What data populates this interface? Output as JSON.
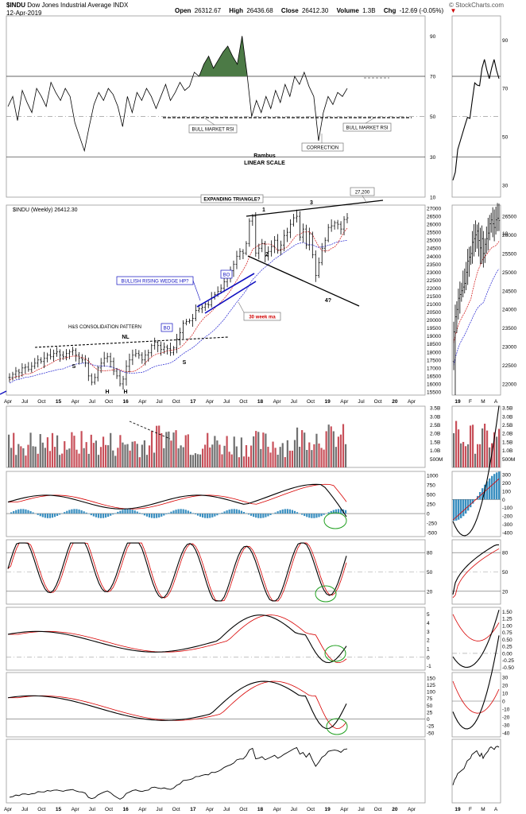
{
  "header": {
    "symbol": "$INDU",
    "name": "Dow Jones Industrial Average",
    "exchange": "INDX",
    "date": "12-Apr-2019",
    "quote": {
      "open_label": "Open",
      "open": "26312.67",
      "high_label": "High",
      "high": "26436.68",
      "close_label": "Close",
      "close": "26412.30",
      "volume_label": "Volume",
      "volume": "1.3B",
      "chg_label": "Chg",
      "chg": "-12.69 (-0.05%)",
      "chg_arrow": "▼"
    },
    "source": "© StockCharts.com"
  },
  "colors": {
    "up_bar": "#000000",
    "down_bar": "#000000",
    "vol_red": "#c8505a",
    "vol_gray": "#707070",
    "macd_hist": "#3a8fc0",
    "signal_red": "#d80000",
    "ma_red": "#d01010",
    "ma_blue": "#2020d0",
    "rsi_fill": "#4c7a46",
    "bo_blue": "#1010c0",
    "circle_green": "#20a020"
  },
  "chart_data": [
    {
      "type": "line",
      "panel": "rsi",
      "yticks": [
        "90",
        "70",
        "50",
        "30",
        "10"
      ],
      "ylim": [
        10,
        100
      ],
      "hlines": [
        70,
        30
      ],
      "dashed_levels": [
        50
      ],
      "annotations": [
        "BULL MARKET RSI",
        "BULL MARKET RSI",
        "CORRECTION",
        "Rambus",
        "LINEAR SCALE"
      ],
      "values": [
        55,
        60,
        48,
        63,
        57,
        52,
        64,
        60,
        55,
        67,
        62,
        58,
        64,
        60,
        47,
        40,
        33,
        45,
        56,
        62,
        58,
        64,
        61,
        55,
        45,
        60,
        52,
        62,
        58,
        64,
        60,
        54,
        60,
        66,
        58,
        62,
        67,
        63,
        65,
        72,
        70,
        76,
        80,
        74,
        78,
        82,
        85,
        80,
        76,
        90,
        72,
        50,
        58,
        52,
        60,
        54,
        63,
        57,
        66,
        60,
        70,
        66,
        72,
        65,
        60,
        38,
        52,
        60,
        56,
        62,
        60,
        64
      ]
    },
    {
      "type": "bar",
      "panel": "price",
      "title": "$INDU (Weekly) 26412.30",
      "yticks": [
        "27000",
        "26500",
        "26000",
        "25500",
        "25000",
        "24500",
        "24000",
        "23500",
        "23000",
        "22500",
        "22000",
        "21500",
        "21000",
        "20500",
        "20000",
        "19500",
        "19000",
        "18500",
        "18000",
        "17500",
        "17000",
        "16500",
        "16000",
        "15500"
      ],
      "ylim": [
        15300,
        27200
      ],
      "x_labels": [
        "Apr",
        "Jul",
        "Oct",
        "15",
        "Apr",
        "Jul",
        "Oct",
        "16",
        "Apr",
        "Jul",
        "Oct",
        "17",
        "Apr",
        "Jul",
        "Oct",
        "18",
        "Apr",
        "Jul",
        "Oct",
        "19",
        "Apr",
        "Jul",
        "Oct",
        "20",
        "Apr"
      ],
      "annotations": [
        "EXPANDING TRIANGLE?",
        "27,200",
        "BULLISH RISING WEDGE HP?",
        "BO",
        "BO",
        "30 week ma",
        "H&S CONSOLIDATION PATTERN",
        "NL",
        "S",
        "S",
        "H",
        "H",
        "1",
        "2",
        "3",
        "4?"
      ],
      "closes": [
        16400,
        16600,
        16800,
        16700,
        17000,
        17050,
        16900,
        17100,
        17300,
        17500,
        17400,
        17600,
        17800,
        17700,
        17900,
        18000,
        17800,
        17700,
        17900,
        18000,
        18100,
        17800,
        17600,
        17500,
        17300,
        16500,
        16100,
        16400,
        17000,
        17300,
        17600,
        17700,
        17400,
        16800,
        16500,
        16000,
        16300,
        17100,
        17500,
        17800,
        17900,
        17800,
        17500,
        17800,
        17950,
        18400,
        18600,
        18400,
        18150,
        18300,
        18200,
        17950,
        18250,
        18800,
        19200,
        19800,
        19900,
        19950,
        20100,
        20600,
        20700,
        20800,
        21000,
        20950,
        21400,
        21600,
        21800,
        22000,
        22400,
        22700,
        23100,
        23500,
        24000,
        24300,
        24200,
        24800,
        26200,
        26500,
        24200,
        24500,
        24800,
        24000,
        24300,
        24600,
        25000,
        24400,
        24700,
        25300,
        25500,
        26000,
        26400,
        26500,
        25200,
        25700,
        24700,
        25400,
        24100,
        22800,
        23600,
        24500,
        25000,
        25800,
        25900,
        26100,
        26000,
        25700,
        26300,
        26400
      ]
    },
    {
      "type": "bar",
      "panel": "volume",
      "yticks": [
        "3.5B",
        "3.0B",
        "2.5B",
        "2.0B",
        "1.5B",
        "1.0B",
        "500M"
      ],
      "ylim": [
        0,
        3.6
      ]
    },
    {
      "type": "line",
      "panel": "macd",
      "yticks": [
        "1000",
        "750",
        "500",
        "250",
        "0",
        "-250",
        "-500"
      ],
      "ylim": [
        -600,
        1100
      ]
    },
    {
      "type": "line",
      "panel": "slow-stochastic",
      "yticks": [
        "80",
        "50",
        "20"
      ],
      "ylim": [
        0,
        100
      ]
    },
    {
      "type": "line",
      "panel": "ppo",
      "yticks": [
        "5",
        "4",
        "3",
        "2",
        "1",
        "0",
        "-1"
      ],
      "ylim": [
        -1.5,
        5.8
      ]
    },
    {
      "type": "line",
      "panel": "cci",
      "yticks": [
        "150",
        "125",
        "100",
        "75",
        "50",
        "25",
        "0",
        "-25",
        "-50"
      ],
      "ylim": [
        -65,
        170
      ]
    },
    {
      "type": "line",
      "panel": "price-line"
    },
    {
      "type": "bar",
      "panel": "daily-price",
      "yticks": [
        "26500",
        "26000",
        "25500",
        "25000",
        "24500",
        "24000",
        "23500",
        "23000",
        "22500",
        "22000"
      ],
      "ylim": [
        21700,
        26800
      ],
      "x_labels": [
        "19",
        "F",
        "M",
        "A"
      ],
      "closes": [
        23400,
        23800,
        24000,
        24300,
        24400,
        24500,
        24600,
        24700,
        25000,
        25300,
        25400,
        25500,
        25800,
        25900,
        26000,
        26100,
        25850,
        25650,
        25900,
        25500,
        25750,
        25900,
        26050,
        26300,
        26400,
        26300,
        26200,
        26400,
        26450,
        26380
      ]
    },
    {
      "type": "line",
      "panel": "daily-rsi",
      "yticks": [
        "90",
        "70",
        "50",
        "30"
      ],
      "ylim": [
        25,
        100
      ]
    },
    {
      "type": "bar",
      "panel": "daily-macd",
      "yticks": [
        "300",
        "200",
        "100",
        "0",
        "-100",
        "-200",
        "-300",
        "-400"
      ],
      "ylim": [
        -450,
        340
      ]
    },
    {
      "type": "line",
      "panel": "daily-ppo",
      "yticks": [
        "1.50",
        "1.25",
        "1.00",
        "0.75",
        "0.50",
        "0.25",
        "0.00",
        "-0.25",
        "-0.50"
      ],
      "ylim": [
        -0.6,
        1.65
      ]
    },
    {
      "type": "line",
      "panel": "daily-cci",
      "yticks": [
        "30",
        "20",
        "10",
        "0",
        "-10",
        "-20",
        "-30",
        "-40"
      ],
      "ylim": [
        -45,
        36
      ]
    }
  ]
}
